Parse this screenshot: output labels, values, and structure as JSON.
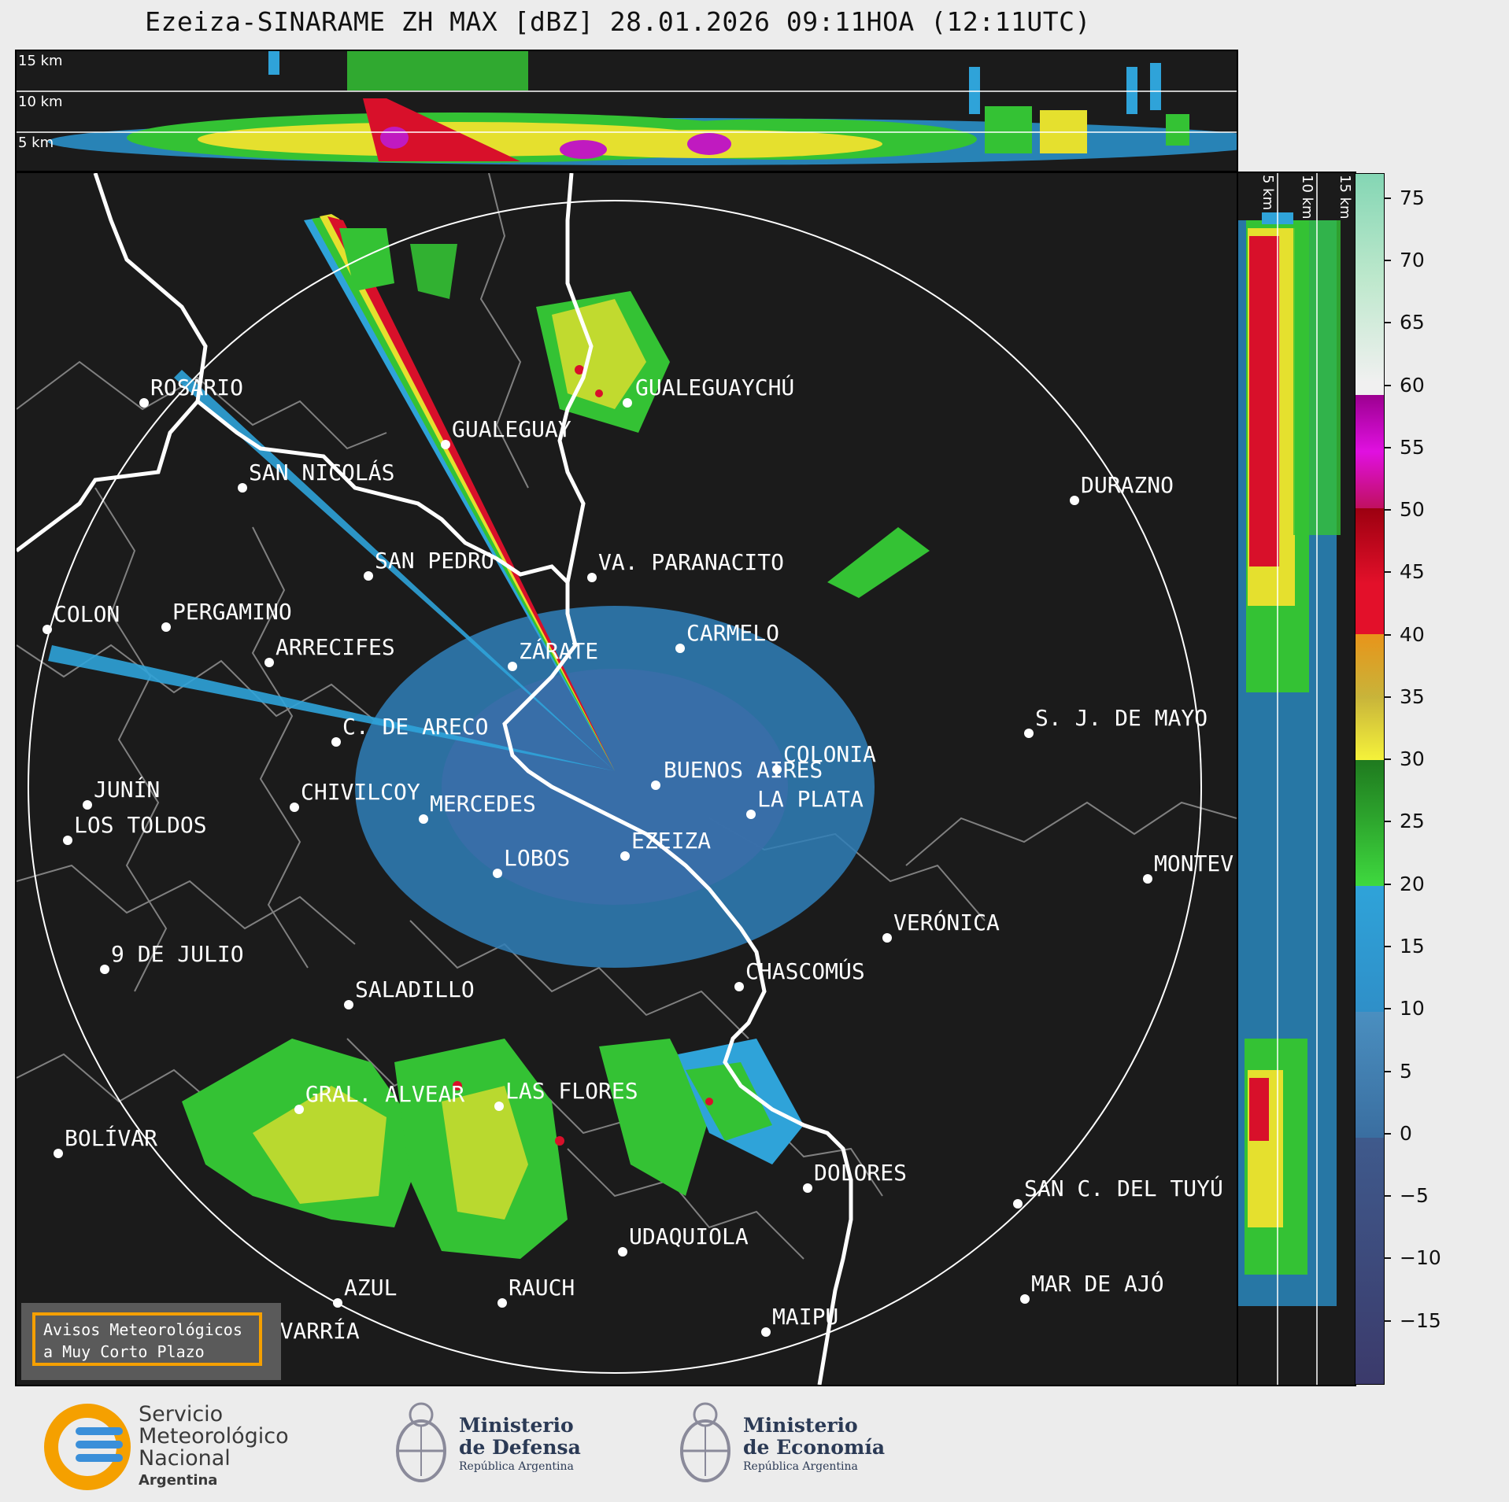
{
  "title": "Ezeiza-SINARAME ZH MAX [dBZ] 28.01.2026 09:11HOA (12:11UTC)",
  "top_panel": {
    "altitude_labels": [
      "15 km",
      "10 km",
      "5 km"
    ]
  },
  "side_panel": {
    "altitude_labels": [
      "5 km",
      "10 km",
      "15 km"
    ]
  },
  "colorbar": {
    "ticks": [
      "75",
      "70",
      "65",
      "60",
      "55",
      "50",
      "45",
      "40",
      "35",
      "30",
      "25",
      "20",
      "15",
      "10",
      "5",
      "0",
      "−5",
      "−10",
      "−15"
    ],
    "range": [
      -20,
      77
    ],
    "colors": {
      "c1": "#3b3a6b",
      "c2": "#3f5a8c",
      "c3": "#4a8fc0",
      "c4": "#2fa3d9",
      "c5": "#3fd93f",
      "c6": "#1f7a1f",
      "c7": "#f5f23a",
      "c8": "#c8b43a",
      "c9": "#e8941a",
      "c10": "#e3102a",
      "c11": "#9c0010",
      "c12": "#c01ac0",
      "c13": "#f0f0f0",
      "c14": "#bde8cc",
      "c15": "#84d6b4"
    }
  },
  "cities": [
    {
      "name": "ROSARIO"
    },
    {
      "name": "GUALEGUAYCHÚ"
    },
    {
      "name": "GUALEGUAY"
    },
    {
      "name": "SAN NICOLÁS"
    },
    {
      "name": "DURAZNO"
    },
    {
      "name": "SAN PEDRO"
    },
    {
      "name": "VA. PARANACITO"
    },
    {
      "name": "COLON"
    },
    {
      "name": "PERGAMINO"
    },
    {
      "name": "CARMELO"
    },
    {
      "name": "ARRECIFES"
    },
    {
      "name": "ZÁRATE"
    },
    {
      "name": "S. J. DE MAYO"
    },
    {
      "name": "C. DE ARECO"
    },
    {
      "name": "COLONIA"
    },
    {
      "name": "JUNÍN"
    },
    {
      "name": "BUENOS AIRES"
    },
    {
      "name": "MERCEDES"
    },
    {
      "name": "EZEIZA"
    },
    {
      "name": "MONTEV"
    },
    {
      "name": "CHIVILCOY"
    },
    {
      "name": "LA PLATA"
    },
    {
      "name": "LOS TOLDOS"
    },
    {
      "name": "LOBOS"
    },
    {
      "name": "VERÓNICA"
    },
    {
      "name": "9 DE JULIO"
    },
    {
      "name": "CHASCOMÚS"
    },
    {
      "name": "SALADILLO"
    },
    {
      "name": "GRAL. ALVEAR"
    },
    {
      "name": "LAS FLORES"
    },
    {
      "name": "BOLÍVAR"
    },
    {
      "name": "DOLORES"
    },
    {
      "name": "SAN C. DEL TUYÚ"
    },
    {
      "name": "UDAQUIOLA"
    },
    {
      "name": "MAR DE AJÓ"
    },
    {
      "name": "AZUL"
    },
    {
      "name": "RAUCH"
    },
    {
      "name": "OLAVARRÍA"
    },
    {
      "name": "MAIPÚ"
    }
  ],
  "avisos": {
    "line1": "Avisos Meteorológicos",
    "line2": "a Muy Corto Plazo"
  },
  "footer": {
    "smn": {
      "l1": "Servicio",
      "l2": "Meteorológico",
      "l3": "Nacional",
      "l4": "Argentina"
    },
    "defensa": {
      "l1": "Ministerio",
      "l2": "de Defensa",
      "l3": "República Argentina"
    },
    "economia": {
      "l1": "Ministerio",
      "l2": "de Economía",
      "l3": "República Argentina"
    }
  }
}
